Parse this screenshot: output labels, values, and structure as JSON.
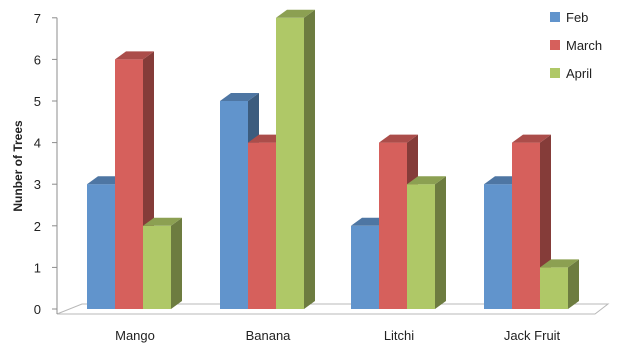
{
  "chart_data": {
    "type": "bar",
    "title": "",
    "xlabel": "",
    "ylabel": "Nunber of Trees",
    "ylim": [
      0,
      7
    ],
    "yticks": [
      "0",
      "1",
      "2",
      "3",
      "4",
      "5",
      "6",
      "7"
    ],
    "grid": false,
    "legend_position": "right",
    "categories": [
      "Mango",
      "Banana",
      "Litchi",
      "Jack Fruit"
    ],
    "series": [
      {
        "name": "Feb",
        "values": [
          3,
          5,
          2,
          3
        ],
        "color": "#6194cc"
      },
      {
        "name": "March",
        "values": [
          6,
          4,
          4,
          4
        ],
        "color": "#d6605c"
      },
      {
        "name": "April",
        "values": [
          2,
          7,
          3,
          1
        ],
        "color": "#afc867"
      }
    ]
  }
}
